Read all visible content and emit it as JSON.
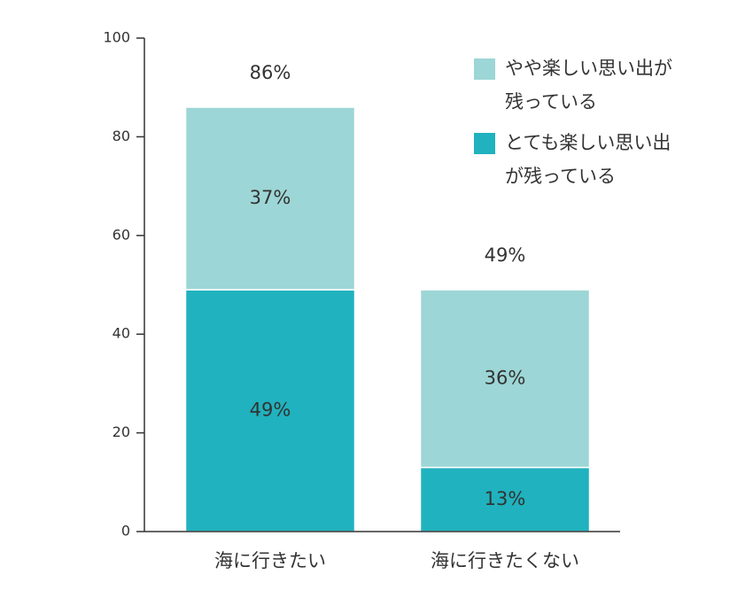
{
  "chart_data": {
    "type": "stacked_bar",
    "categories": [
      "海に行きたい",
      "海に行きたくない"
    ],
    "series": [
      {
        "name": "とても楽しい思い出が残っている",
        "color": "#20b2be",
        "values": [
          49,
          13
        ],
        "value_labels": [
          "49%",
          "13%"
        ]
      },
      {
        "name": "やや楽しい思い出が残っている",
        "color": "#9dd6d6",
        "values": [
          37,
          36
        ],
        "value_labels": [
          "37%",
          "36%"
        ]
      }
    ],
    "totals": [
      86,
      49
    ],
    "total_labels": [
      "86%",
      "49%"
    ],
    "ylim": [
      0,
      100
    ],
    "yticks": [
      0,
      20,
      40,
      60,
      80,
      100
    ],
    "grid": false,
    "legend": "upper right"
  }
}
